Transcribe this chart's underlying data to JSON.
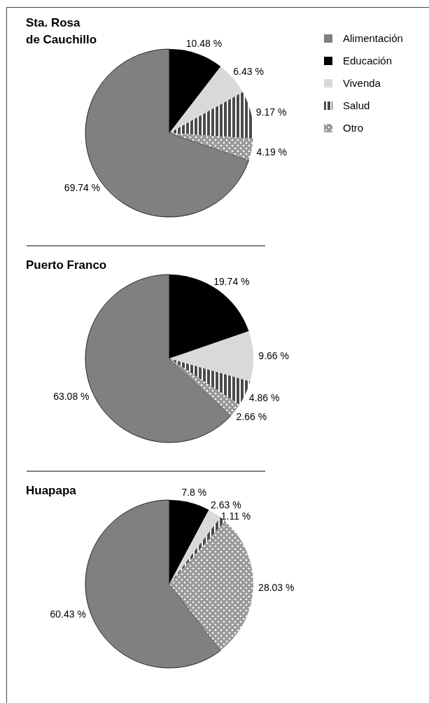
{
  "chart_data": [
    {
      "type": "pie",
      "title": "Sta. Rosa de Cauchillo",
      "categories": [
        "Alimentación",
        "Educación",
        "Vivenda",
        "Salud",
        "Otro"
      ],
      "values": [
        69.74,
        10.48,
        6.43,
        9.17,
        4.19
      ],
      "value_labels": [
        "69.74 %",
        "10.48 %",
        "6.43 %",
        "9.17 %",
        "4.19 %"
      ],
      "colors": [
        "#808081",
        "#000000",
        "#d9d9d9",
        "#4a4a4a",
        "#9a9a9a"
      ],
      "legend": "right"
    },
    {
      "type": "pie",
      "title": "Puerto Franco",
      "categories": [
        null,
        null,
        null,
        null,
        null
      ],
      "values": [
        63.08,
        19.74,
        9.66,
        4.86,
        2.66
      ],
      "value_labels": [
        "63.08 %",
        "19.74 %",
        "9.66 %",
        "4.86 %",
        "2.66 %"
      ],
      "colors": [
        "#808081",
        "#000000",
        "#d9d9d9",
        "#4a4a4a",
        "#9a9a9a"
      ]
    },
    {
      "type": "pie",
      "title": "Huapapa",
      "categories": [
        null,
        null,
        null,
        null,
        null
      ],
      "values": [
        60.43,
        7.8,
        2.63,
        1.11,
        28.03
      ],
      "value_labels": [
        "60.43 %",
        "7.8 %",
        "2.63 %",
        "1.11 %",
        "28.03 %"
      ],
      "colors": [
        "#808081",
        "#000000",
        "#d9d9d9",
        "#4a4a4a",
        "#9a9a9a"
      ]
    }
  ]
}
